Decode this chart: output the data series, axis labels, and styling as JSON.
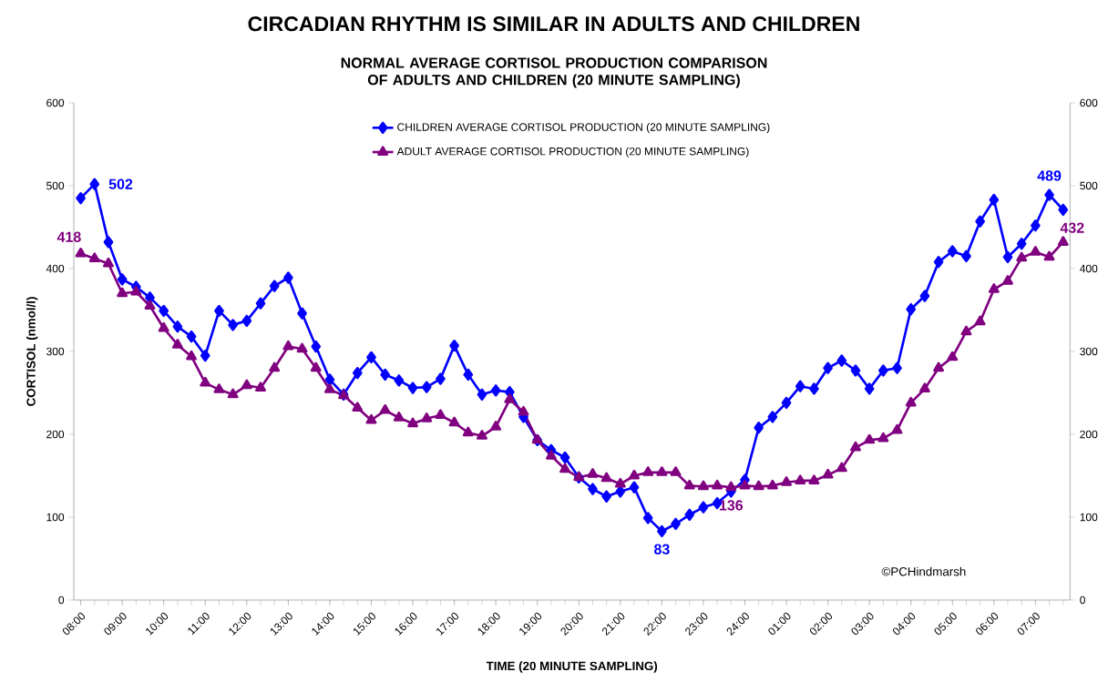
{
  "chart_data": {
    "type": "line",
    "title": "CIRCADIAN RHYTHM IS SIMILAR IN ADULTS AND CHILDREN",
    "subtitle": "NORMAL AVERAGE CORTISOL PRODUCTION COMPARISON OF ADULTS AND CHILDREN (20 MINUTE SAMPLING)",
    "xlabel": "TIME (20 MINUTE SAMPLING)",
    "ylabel": "CORTISOL (nmol/l)",
    "categories": [
      "08:00",
      null,
      null,
      "09:00",
      null,
      null,
      "10:00",
      null,
      null,
      "11:00",
      null,
      null,
      "12:00",
      null,
      null,
      "13:00",
      null,
      null,
      "14:00",
      null,
      null,
      "15:00",
      null,
      null,
      "16:00",
      null,
      null,
      "17:00",
      null,
      null,
      "18:00",
      null,
      null,
      "19:00",
      null,
      null,
      "20:00",
      null,
      null,
      "21:00",
      null,
      null,
      "22:00",
      null,
      null,
      "23:00",
      null,
      null,
      "24:00",
      null,
      null,
      "01:00",
      null,
      null,
      "02:00",
      null,
      null,
      "03:00",
      null,
      null,
      "04:00",
      null,
      null,
      "05:00",
      null,
      null,
      "06:00",
      null,
      null,
      "07:00",
      null,
      null
    ],
    "series": [
      {
        "name": "CHILDREN AVERAGE CORTISOL PRODUCTION (20 MINUTE SAMPLING)",
        "color": "#0000ff",
        "marker": "diamond",
        "values": [
          485,
          502,
          432,
          387,
          378,
          365,
          349,
          330,
          318,
          295,
          349,
          332,
          337,
          358,
          379,
          389,
          346,
          306,
          266,
          248,
          274,
          293,
          272,
          265,
          256,
          257,
          267,
          307,
          272,
          248,
          253,
          251,
          221,
          193,
          181,
          172,
          148,
          134,
          125,
          131,
          136,
          99,
          83,
          92,
          103,
          112,
          117,
          131,
          145,
          208,
          221,
          238,
          258,
          255,
          280,
          289,
          277,
          255,
          277,
          280,
          351,
          367,
          408,
          421,
          415,
          457,
          483,
          414,
          430,
          452,
          489,
          471
        ],
        "value_labels": [
          null,
          "502",
          null,
          null,
          null,
          null,
          null,
          null,
          null,
          null,
          null,
          null,
          null,
          null,
          null,
          null,
          null,
          null,
          null,
          null,
          null,
          null,
          null,
          null,
          null,
          null,
          null,
          null,
          null,
          null,
          null,
          null,
          null,
          null,
          null,
          null,
          null,
          null,
          null,
          null,
          null,
          null,
          "83",
          null,
          null,
          null,
          null,
          null,
          null,
          null,
          null,
          null,
          null,
          null,
          null,
          null,
          null,
          null,
          null,
          null,
          null,
          null,
          null,
          null,
          null,
          null,
          null,
          null,
          null,
          null,
          "489",
          null
        ]
      },
      {
        "name": "ADULT AVERAGE CORTISOL PRODUCTION (20 MINUTE SAMPLING)",
        "color": "#800080",
        "marker": "triangle",
        "values": [
          418,
          412,
          406,
          370,
          372,
          355,
          328,
          308,
          294,
          262,
          254,
          248,
          259,
          256,
          280,
          306,
          303,
          280,
          254,
          247,
          232,
          217,
          229,
          220,
          213,
          219,
          223,
          214,
          202,
          198,
          209,
          242,
          227,
          193,
          174,
          158,
          148,
          152,
          147,
          140,
          150,
          154,
          154,
          154,
          138,
          137,
          138,
          136,
          138,
          137,
          138,
          142,
          144,
          144,
          151,
          159,
          184,
          193,
          195,
          205,
          238,
          255,
          280,
          293,
          324,
          336,
          375,
          385,
          413,
          420,
          414,
          432
        ],
        "value_labels": [
          "418",
          null,
          null,
          null,
          null,
          null,
          null,
          null,
          null,
          null,
          null,
          null,
          null,
          null,
          null,
          null,
          null,
          null,
          null,
          null,
          null,
          null,
          null,
          null,
          null,
          null,
          null,
          null,
          null,
          null,
          null,
          null,
          null,
          null,
          null,
          null,
          null,
          null,
          null,
          null,
          null,
          null,
          null,
          null,
          null,
          null,
          null,
          "136",
          null,
          null,
          null,
          null,
          null,
          null,
          null,
          null,
          null,
          null,
          null,
          null,
          null,
          null,
          null,
          null,
          null,
          null,
          null,
          null,
          null,
          null,
          null,
          "432"
        ]
      }
    ],
    "ylim": [
      0,
      600
    ],
    "yticks": [
      0,
      100,
      200,
      300,
      400,
      500,
      600
    ],
    "y2lim": [
      0,
      600
    ],
    "y2ticks": [
      0,
      100,
      200,
      300,
      400,
      500,
      600
    ],
    "legend": "top",
    "grid": false,
    "line_style": "solid",
    "annotations": [
      "©PCHindmarsh"
    ]
  }
}
